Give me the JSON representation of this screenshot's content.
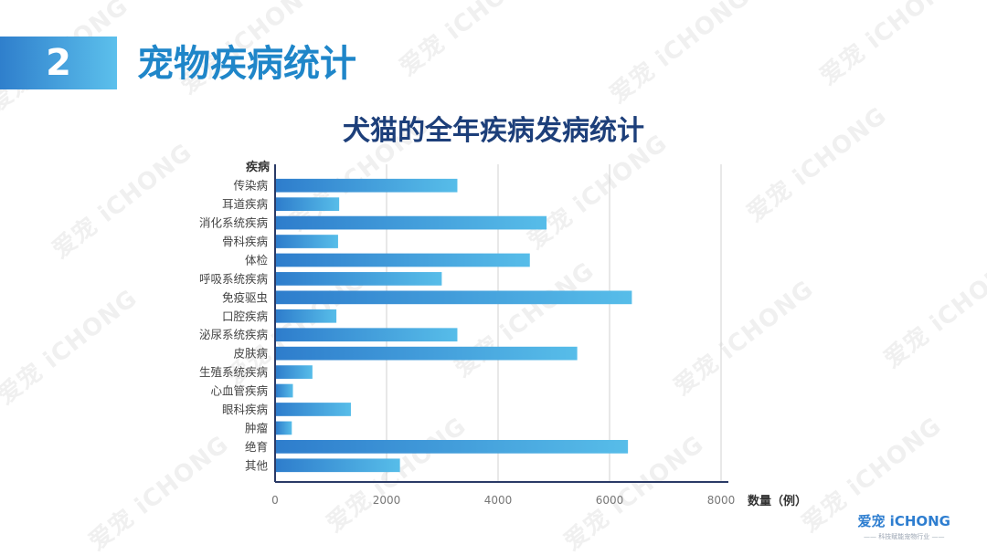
{
  "section": {
    "number": "2",
    "title": "宠物疾病统计"
  },
  "brand": {
    "name": "爱宠 iCHONG",
    "tagline": "—— 科技赋能宠物行业 ——"
  },
  "watermark_text": "爱宠 iCHONG",
  "colors": {
    "bar_start": "#2e7dcc",
    "bar_end": "#57bde9",
    "axis": "#2a3a66",
    "grid": "#d0d0d0",
    "title": "#1d3f7a",
    "accent": "#1f86c9"
  },
  "chart_data": {
    "type": "bar",
    "orientation": "horizontal",
    "title": "犬猫的全年疾病发病统计",
    "ylabel": "疾病",
    "xlabel": "数量（例）",
    "xlim": [
      0,
      8000
    ],
    "xticks": [
      0,
      2000,
      4000,
      6000,
      8000
    ],
    "grid": true,
    "categories": [
      "传染病",
      "耳道疾病",
      "消化系统疾病",
      "骨科疾病",
      "体检",
      "呼吸系统疾病",
      "免疫驱虫",
      "口腔疾病",
      "泌尿系统疾病",
      "皮肤病",
      "生殖系统疾病",
      "心血管疾病",
      "眼科疾病",
      "肿瘤",
      "绝育",
      "其他"
    ],
    "values": [
      3270,
      1150,
      4870,
      1130,
      4570,
      2990,
      6400,
      1100,
      3270,
      5420,
      670,
      320,
      1360,
      300,
      6330,
      2240
    ]
  }
}
